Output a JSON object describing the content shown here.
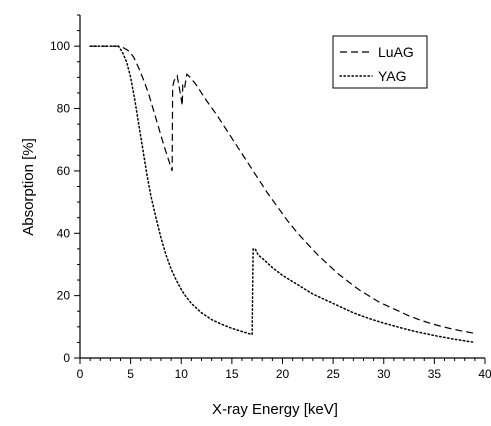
{
  "chart_data": {
    "type": "line",
    "title": "",
    "xlabel": "X-ray Energy [keV]",
    "ylabel": "Absorption [%]",
    "xlim": [
      0,
      40
    ],
    "ylim": [
      0,
      110
    ],
    "x_ticks": [
      0,
      5,
      10,
      15,
      20,
      25,
      30,
      35,
      40
    ],
    "y_ticks": [
      0,
      20,
      40,
      60,
      80,
      100
    ],
    "x_minor_step": 1,
    "y_minor_step": 5,
    "grid": false,
    "legend_position": "top-right",
    "series": [
      {
        "name": "LuAG",
        "style": "dashed",
        "color": "#000000",
        "points": [
          [
            1,
            100
          ],
          [
            2,
            100
          ],
          [
            3,
            100
          ],
          [
            3.8,
            100
          ],
          [
            4.3,
            99.5
          ],
          [
            4.8,
            98.5
          ],
          [
            5.3,
            96.5
          ],
          [
            5.8,
            93
          ],
          [
            6.3,
            89
          ],
          [
            6.8,
            84.5
          ],
          [
            7.3,
            79
          ],
          [
            7.8,
            73.5
          ],
          [
            8.3,
            68
          ],
          [
            8.8,
            63
          ],
          [
            9.1,
            60
          ],
          [
            9.15,
            87
          ],
          [
            9.3,
            89
          ],
          [
            9.6,
            90.5
          ],
          [
            9.9,
            85
          ],
          [
            10.1,
            81
          ],
          [
            10.15,
            88
          ],
          [
            10.35,
            87
          ],
          [
            10.55,
            91
          ],
          [
            10.9,
            90
          ],
          [
            11.5,
            87.5
          ],
          [
            12.5,
            82.5
          ],
          [
            13.5,
            78
          ],
          [
            14.5,
            73
          ],
          [
            15.5,
            68
          ],
          [
            16.5,
            63
          ],
          [
            17.5,
            58
          ],
          [
            18.5,
            53
          ],
          [
            19.5,
            48.5
          ],
          [
            20.5,
            44
          ],
          [
            21.5,
            40
          ],
          [
            22.5,
            36.5
          ],
          [
            23.5,
            33
          ],
          [
            24.5,
            30
          ],
          [
            25.5,
            27
          ],
          [
            26.5,
            24.5
          ],
          [
            27.5,
            22
          ],
          [
            28.5,
            20
          ],
          [
            29.5,
            18
          ],
          [
            30.5,
            16.5
          ],
          [
            31.5,
            15
          ],
          [
            32.5,
            13.5
          ],
          [
            33.5,
            12.3
          ],
          [
            34.5,
            11.2
          ],
          [
            35.5,
            10.3
          ],
          [
            36.5,
            9.5
          ],
          [
            37.5,
            8.8
          ],
          [
            38.5,
            8.2
          ],
          [
            39,
            7.8
          ]
        ]
      },
      {
        "name": "YAG",
        "style": "dotted",
        "color": "#000000",
        "points": [
          [
            1,
            100
          ],
          [
            2,
            100
          ],
          [
            3,
            100
          ],
          [
            3.8,
            100
          ],
          [
            4.2,
            98
          ],
          [
            4.6,
            95
          ],
          [
            5,
            90
          ],
          [
            5.4,
            83
          ],
          [
            5.8,
            75
          ],
          [
            6.2,
            67
          ],
          [
            6.6,
            59
          ],
          [
            7,
            52
          ],
          [
            7.5,
            45
          ],
          [
            8,
            38.5
          ],
          [
            8.5,
            33
          ],
          [
            9,
            28.5
          ],
          [
            9.5,
            25
          ],
          [
            10,
            22
          ],
          [
            10.5,
            19.5
          ],
          [
            11,
            17.5
          ],
          [
            12,
            14.5
          ],
          [
            13,
            12.3
          ],
          [
            14,
            10.8
          ],
          [
            15,
            9.5
          ],
          [
            16,
            8.5
          ],
          [
            17,
            7.5
          ],
          [
            17.1,
            35
          ],
          [
            17.3,
            35
          ],
          [
            17.6,
            33
          ],
          [
            18,
            32
          ],
          [
            18.5,
            30.5
          ],
          [
            19,
            29
          ],
          [
            20,
            26.5
          ],
          [
            21,
            24.5
          ],
          [
            22,
            22.5
          ],
          [
            23,
            20.5
          ],
          [
            24,
            19
          ],
          [
            25,
            17.5
          ],
          [
            26,
            16
          ],
          [
            27,
            14.5
          ],
          [
            28,
            13.3
          ],
          [
            29,
            12.2
          ],
          [
            30,
            11.2
          ],
          [
            31,
            10.3
          ],
          [
            32,
            9.4
          ],
          [
            33,
            8.6
          ],
          [
            34,
            7.9
          ],
          [
            35,
            7.2
          ],
          [
            36,
            6.6
          ],
          [
            37,
            6
          ],
          [
            38,
            5.5
          ],
          [
            39,
            5
          ]
        ]
      }
    ]
  }
}
